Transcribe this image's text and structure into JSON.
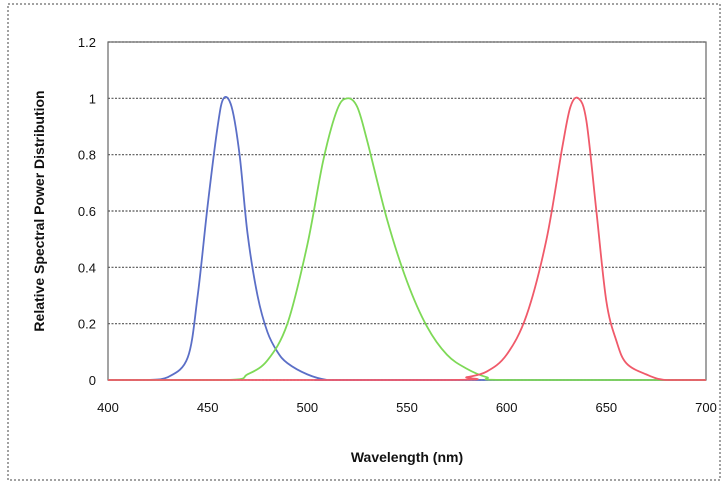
{
  "chart_data": {
    "type": "line",
    "title": "",
    "xlabel": "Wavelength (nm)",
    "ylabel": "Relative Spectral Power Distribution",
    "xlim": [
      400,
      700
    ],
    "ylim": [
      0,
      1.2
    ],
    "x_ticks": [
      "400",
      "450",
      "500",
      "550",
      "600",
      "650",
      "700"
    ],
    "y_ticks": [
      "0",
      "0.2",
      "0.4",
      "0.6",
      "0.8",
      "1",
      "1.2"
    ],
    "grid": true,
    "legend": "none",
    "series": [
      {
        "color": "#5b6fc7",
        "points": [
          [
            400,
            0
          ],
          [
            420,
            0
          ],
          [
            430,
            0.01
          ],
          [
            440,
            0.08
          ],
          [
            445,
            0.3
          ],
          [
            450,
            0.62
          ],
          [
            455,
            0.9
          ],
          [
            458,
            1.0
          ],
          [
            462,
            0.97
          ],
          [
            466,
            0.8
          ],
          [
            470,
            0.52
          ],
          [
            475,
            0.3
          ],
          [
            480,
            0.17
          ],
          [
            485,
            0.1
          ],
          [
            490,
            0.06
          ],
          [
            500,
            0.02
          ],
          [
            510,
            0
          ],
          [
            520,
            0
          ],
          [
            700,
            0
          ]
        ]
      },
      {
        "color": "#7ed957",
        "points": [
          [
            400,
            0
          ],
          [
            460,
            0
          ],
          [
            470,
            0.02
          ],
          [
            480,
            0.07
          ],
          [
            490,
            0.2
          ],
          [
            500,
            0.48
          ],
          [
            508,
            0.78
          ],
          [
            515,
            0.96
          ],
          [
            520,
            1.0
          ],
          [
            525,
            0.97
          ],
          [
            530,
            0.85
          ],
          [
            540,
            0.57
          ],
          [
            550,
            0.35
          ],
          [
            560,
            0.19
          ],
          [
            570,
            0.09
          ],
          [
            580,
            0.04
          ],
          [
            590,
            0.01
          ],
          [
            600,
            0
          ],
          [
            700,
            0
          ]
        ]
      },
      {
        "color": "#f05a6a",
        "points": [
          [
            400,
            0
          ],
          [
            570,
            0
          ],
          [
            580,
            0.01
          ],
          [
            590,
            0.03
          ],
          [
            600,
            0.09
          ],
          [
            610,
            0.23
          ],
          [
            620,
            0.5
          ],
          [
            628,
            0.83
          ],
          [
            632,
            0.97
          ],
          [
            636,
            1.0
          ],
          [
            640,
            0.92
          ],
          [
            645,
            0.6
          ],
          [
            650,
            0.28
          ],
          [
            655,
            0.14
          ],
          [
            660,
            0.06
          ],
          [
            670,
            0.02
          ],
          [
            680,
            0
          ],
          [
            700,
            0
          ]
        ]
      }
    ]
  }
}
